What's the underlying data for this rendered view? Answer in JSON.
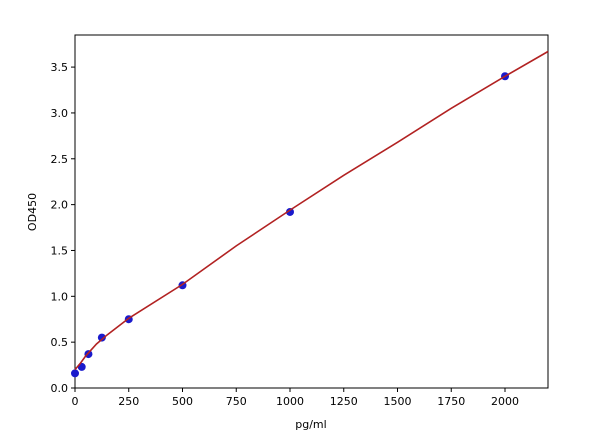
{
  "chart_data": {
    "type": "scatter",
    "xlabel": "pg/ml",
    "ylabel": "OD450",
    "xlim": [
      0,
      2200
    ],
    "xticks": [
      0,
      250,
      500,
      750,
      1000,
      1250,
      1500,
      1750,
      2000
    ],
    "ylim": [
      0,
      3.85
    ],
    "yticks": [
      {
        "value": 0,
        "label": "0.0"
      },
      0.5,
      {
        "value": 1,
        "label": "1.0"
      },
      1.5,
      {
        "value": 2,
        "label": "2.0"
      },
      2.5,
      {
        "value": 3,
        "label": "3.0"
      },
      3.5
    ],
    "grid": false,
    "series": [
      {
        "mode": "markers",
        "color": "#1a1acc",
        "x": [
          0,
          31.25,
          62.5,
          125,
          250,
          500,
          1000,
          2000
        ],
        "values": [
          0.16,
          0.23,
          0.37,
          0.55,
          0.75,
          1.12,
          1.92,
          3.4
        ]
      },
      {
        "mode": "line",
        "color": "#b22222",
        "x": [
          0,
          25,
          50,
          100,
          150,
          250,
          500,
          750,
          1000,
          1250,
          1500,
          1750,
          2000,
          2200
        ],
        "values": [
          0.2,
          0.27,
          0.35,
          0.48,
          0.58,
          0.76,
          1.13,
          1.55,
          1.94,
          2.32,
          2.68,
          3.05,
          3.4,
          3.67
        ]
      }
    ]
  }
}
